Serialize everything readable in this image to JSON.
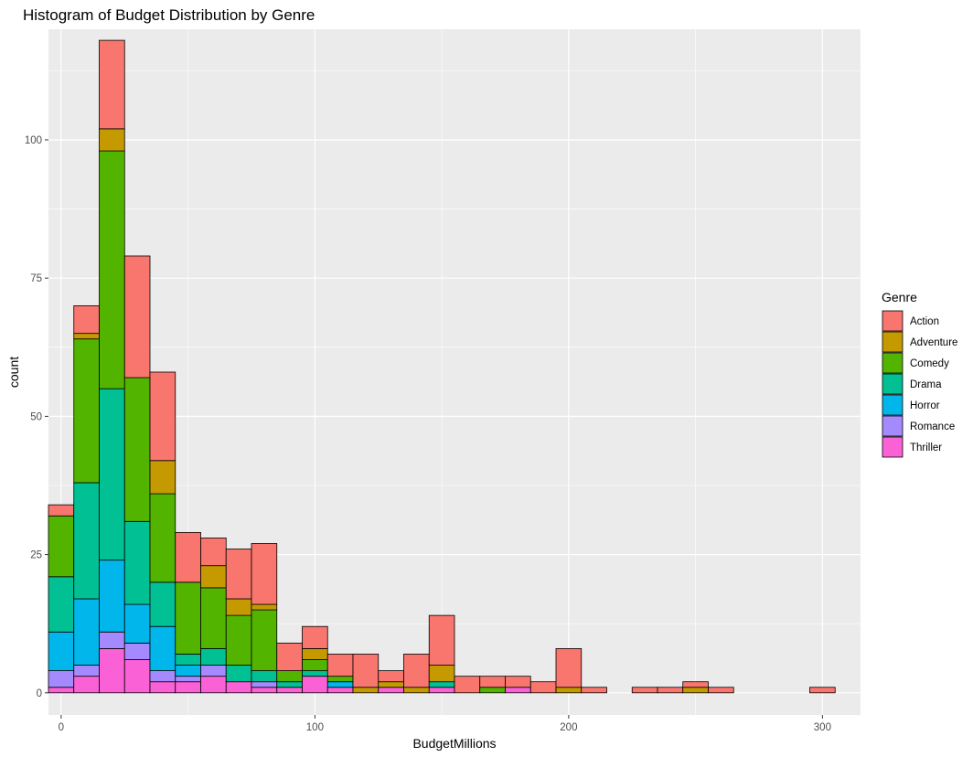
{
  "chart_data": {
    "type": "bar",
    "subtype": "stacked-histogram",
    "title": "Histogram of Budget Distribution by Genre",
    "xlabel": "BudgetMillions",
    "ylabel": "count",
    "xlim": [
      -5,
      315
    ],
    "ylim": [
      -4,
      120
    ],
    "x_ticks": [
      0,
      100,
      200,
      300
    ],
    "y_ticks": [
      0,
      25,
      50,
      75,
      100
    ],
    "grid": true,
    "legend": {
      "title": "Genre",
      "placement": "right"
    },
    "bin_width": 10,
    "bin_centers": [
      0,
      10,
      20,
      30,
      40,
      50,
      60,
      70,
      80,
      90,
      100,
      110,
      120,
      130,
      140,
      150,
      160,
      170,
      180,
      190,
      200,
      210,
      220,
      230,
      240,
      250,
      260,
      270,
      280,
      290,
      300
    ],
    "stack_order": [
      "Thriller",
      "Romance",
      "Horror",
      "Drama",
      "Comedy",
      "Adventure",
      "Action"
    ],
    "series": [
      {
        "name": "Action",
        "color": "#F8766D",
        "values": [
          2,
          5,
          16,
          22,
          16,
          9,
          5,
          9,
          11,
          5,
          4,
          4,
          6,
          2,
          6,
          9,
          3,
          2,
          2,
          2,
          7,
          1,
          0,
          1,
          1,
          1,
          1,
          0,
          0,
          0,
          1
        ]
      },
      {
        "name": "Adventure",
        "color": "#C49A00",
        "values": [
          0,
          1,
          4,
          0,
          6,
          0,
          4,
          3,
          1,
          0,
          2,
          0,
          1,
          1,
          1,
          3,
          0,
          0,
          0,
          0,
          1,
          0,
          0,
          0,
          0,
          1,
          0,
          0,
          0,
          0,
          0
        ]
      },
      {
        "name": "Comedy",
        "color": "#53B400",
        "values": [
          11,
          26,
          43,
          26,
          16,
          13,
          11,
          9,
          11,
          2,
          2,
          1,
          0,
          0,
          0,
          0,
          0,
          1,
          0,
          0,
          0,
          0,
          0,
          0,
          0,
          0,
          0,
          0,
          0,
          0,
          0
        ]
      },
      {
        "name": "Drama",
        "color": "#00C094",
        "values": [
          10,
          21,
          31,
          15,
          8,
          2,
          3,
          3,
          2,
          1,
          1,
          0,
          0,
          0,
          0,
          1,
          0,
          0,
          0,
          0,
          0,
          0,
          0,
          0,
          0,
          0,
          0,
          0,
          0,
          0,
          0
        ]
      },
      {
        "name": "Horror",
        "color": "#00B6EB",
        "values": [
          7,
          12,
          13,
          7,
          8,
          2,
          0,
          0,
          0,
          0,
          0,
          1,
          0,
          0,
          0,
          0,
          0,
          0,
          0,
          0,
          0,
          0,
          0,
          0,
          0,
          0,
          0,
          0,
          0,
          0,
          0
        ]
      },
      {
        "name": "Romance",
        "color": "#A58AFF",
        "values": [
          3,
          2,
          3,
          3,
          2,
          1,
          2,
          0,
          1,
          0,
          0,
          0,
          0,
          0,
          0,
          0,
          0,
          0,
          0,
          0,
          0,
          0,
          0,
          0,
          0,
          0,
          0,
          0,
          0,
          0,
          0
        ]
      },
      {
        "name": "Thriller",
        "color": "#FB61D7",
        "values": [
          1,
          3,
          8,
          6,
          2,
          2,
          3,
          2,
          1,
          1,
          3,
          1,
          0,
          1,
          0,
          1,
          0,
          0,
          1,
          0,
          0,
          0,
          0,
          0,
          0,
          0,
          0,
          0,
          0,
          0,
          0
        ]
      }
    ]
  }
}
